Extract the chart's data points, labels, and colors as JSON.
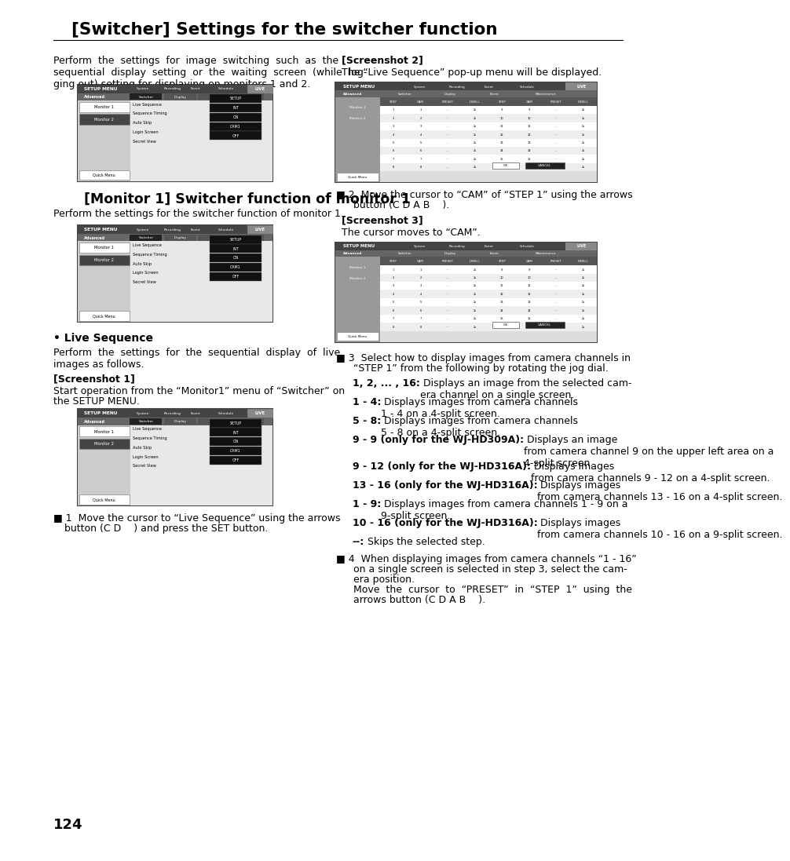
{
  "title": "[Switcher] Settings for the switcher function",
  "page_number": "124",
  "bg_color": "#ffffff",
  "text_color": "#000000",
  "intro_left": "Perform  the  settings  for  image  switching  such  as  the sequential  display  setting  or  the  waiting  screen  (while  log-ging out) setting for displaying on monitors 1 and 2.",
  "screenshot2_label": "[Screenshot 2]",
  "screenshot2_text": "The “Live Sequence” pop-up menu will be displayed.",
  "step2_line1": "Move the cursor to “CAM” of “STEP 1” using the arrows",
  "step2_line2": "button (C D A B    ).",
  "monitor1_title": "[Monitor 1] Switcher function of monitor 1",
  "monitor1_text": "Perform the settings for the switcher function of monitor 1.",
  "screenshot3_label": "[Screenshot 3]",
  "screenshot3_text": "The cursor moves to “CAM”.",
  "live_seq_title": "• Live Sequence",
  "live_seq_text": "Perform  the  settings  for  the  sequential  display  of  live images as follows.",
  "screenshot1_label": "[Screenshot 1]",
  "screenshot1_line1": "Start operation from the “Monitor1” menu of “Switcher” on",
  "screenshot1_line2": "the SETUP MENU.",
  "step1_line1": "Move the cursor to “Live Sequence” using the arrows",
  "step1_line2": "button (C D    ) and press the SET button.",
  "step3_line1": "Select how to display images from camera channels in",
  "step3_line2": "“STEP 1” from the following by rotating the jog dial.",
  "step3_items": [
    {
      "bold": "1, 2, ... , 16:",
      "normal": " Displays an image from the selected cam-\nera channel on a single screen."
    },
    {
      "bold": "1 - 4:",
      "normal": " Displays images from camera channels\n1 - 4 on a 4-split screen."
    },
    {
      "bold": "5 - 8:",
      "normal": " Displays images from camera channels\n5 - 8 on a 4-split screen."
    },
    {
      "bold": "9 - 9 (only for the WJ-HD309A):",
      "normal": " Displays an image\nfrom camera channel 9 on the upper left area on a\n4-split screen."
    },
    {
      "bold": "9 - 12 (only for the WJ-HD316A):",
      "normal": " Displays images\nfrom camera channels 9 - 12 on a 4-split screen."
    },
    {
      "bold": "13 - 16 (only for the WJ-HD316A):",
      "normal": " Displays images\nfrom camera channels 13 - 16 on a 4-split screen."
    },
    {
      "bold": "1 - 9:",
      "normal": " Displays images from camera channels 1 - 9 on a\n9-split screen."
    },
    {
      "bold": "10 - 16 (only for the WJ-HD316A):",
      "normal": " Displays images\nfrom camera channels 10 - 16 on a 9-split screen."
    },
    {
      "bold": "--:",
      "normal": " Skips the selected step."
    }
  ],
  "step4_line1": "When displaying images from camera channels “1 - 16”",
  "step4_line2": "on a single screen is selected in step 3, select the cam-",
  "step4_line3": "era position.",
  "step4_line4": "Move  the  cursor  to  “PRESET”  in  “STEP  1”  using  the",
  "step4_line5": "arrows button (C D A B    )."
}
